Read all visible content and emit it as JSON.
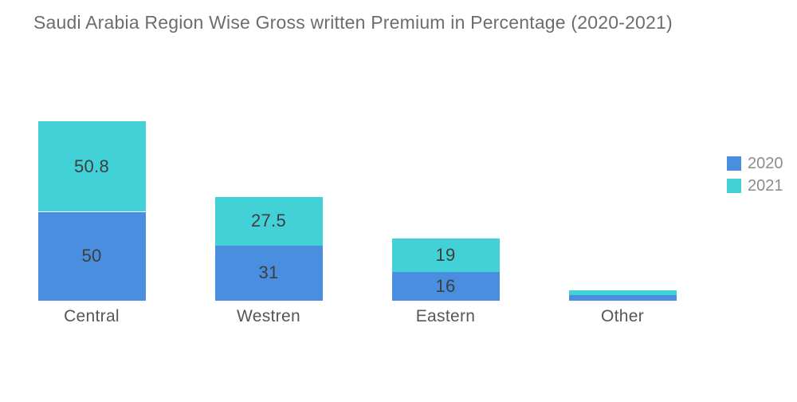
{
  "chart_data": {
    "type": "bar",
    "stacked": true,
    "title": "Saudi Arabia Region Wise Gross written Premium in Percentage (2020-2021)",
    "categories": [
      "Central",
      "Westren",
      "Eastern",
      "Other"
    ],
    "series": [
      {
        "name": "2020",
        "color": "#4A8EDF",
        "values": [
          50,
          31,
          16,
          3
        ],
        "display_labels": [
          "50",
          "31",
          "16",
          ""
        ]
      },
      {
        "name": "2021",
        "color": "#43D1D8",
        "values": [
          50.8,
          27.5,
          19,
          2.7
        ],
        "display_labels": [
          "50.8",
          "27.5",
          "19",
          ""
        ]
      }
    ],
    "xlabel": "",
    "ylabel": "",
    "ylim": [
      0,
      100
    ],
    "grid": false,
    "axes_visible": false,
    "legend_position": "right",
    "legend_order": [
      "2020",
      "2021"
    ],
    "colors": {
      "background": "#FFFFFF",
      "title_text": "#6D6D6D",
      "value_label_text": "#3E3E3E",
      "category_label_text": "#565656",
      "legend_text": "#8C8C8C"
    }
  }
}
